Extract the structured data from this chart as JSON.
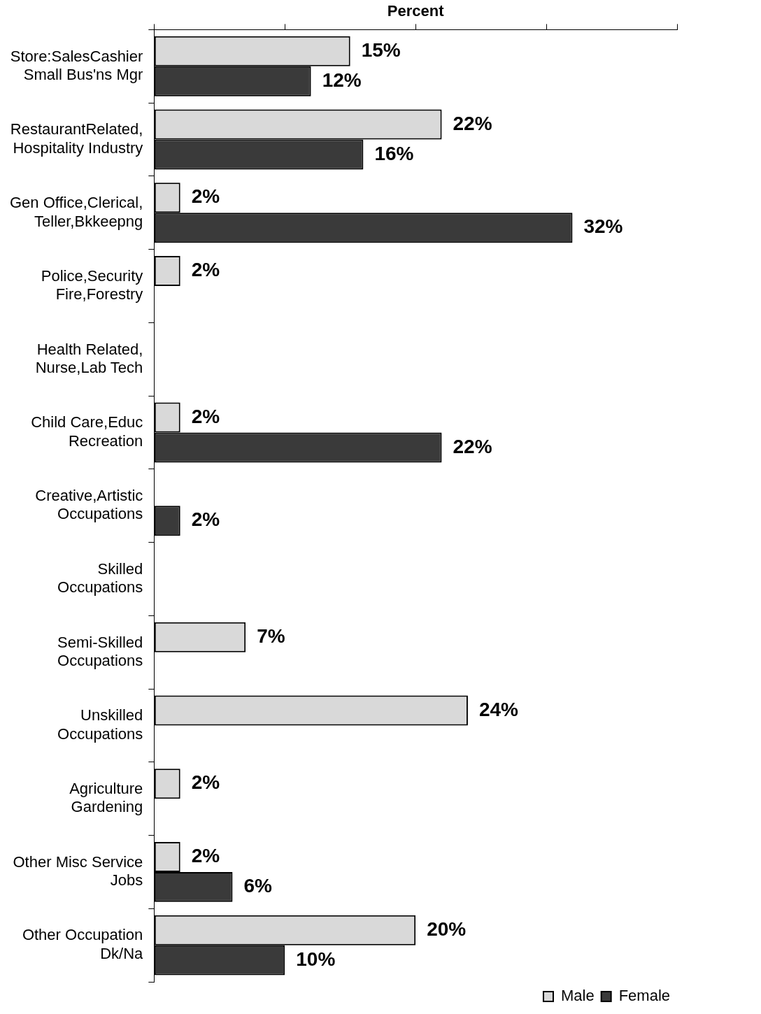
{
  "chart_data": {
    "type": "bar",
    "orientation": "horizontal",
    "xlabel": "Percent",
    "categories": [
      "Store:SalesCashier\nSmall Bus'ns Mgr",
      "RestaurantRelated,\nHospitality Industry",
      "Gen Office,Clerical,\nTeller,Bkkeepng",
      "Police,Security\nFire,Forestry",
      "Health Related,\nNurse,Lab Tech",
      "Child Care,Educ\nRecreation",
      "Creative,Artistic\nOccupations",
      "Skilled\nOccupations",
      "Semi-Skilled\nOccupations",
      "Unskilled\nOccupations",
      "Agriculture\nGardening",
      "Other Misc Service\nJobs",
      "Other Occupation\nDk/Na"
    ],
    "series": [
      {
        "name": "Male",
        "color": "#d9d9d9",
        "values": [
          15,
          22,
          2,
          2,
          null,
          2,
          null,
          null,
          7,
          24,
          2,
          2,
          20
        ],
        "value_labels": [
          "15%",
          "22%",
          "2%",
          "2%",
          null,
          "2%",
          null,
          null,
          "7%",
          "24%",
          "2%",
          "2%",
          "20%"
        ]
      },
      {
        "name": "Female",
        "color": "#3a3a3a",
        "values": [
          12,
          16,
          32,
          null,
          null,
          22,
          2,
          null,
          null,
          null,
          null,
          6,
          10
        ],
        "value_labels": [
          "12%",
          "16%",
          "32%",
          null,
          null,
          "22%",
          "2%",
          null,
          null,
          null,
          null,
          "6%",
          "10%"
        ]
      }
    ],
    "xlim": [
      0,
      40
    ],
    "tick_labels": "y",
    "grid": false,
    "legend": "bottom right"
  }
}
